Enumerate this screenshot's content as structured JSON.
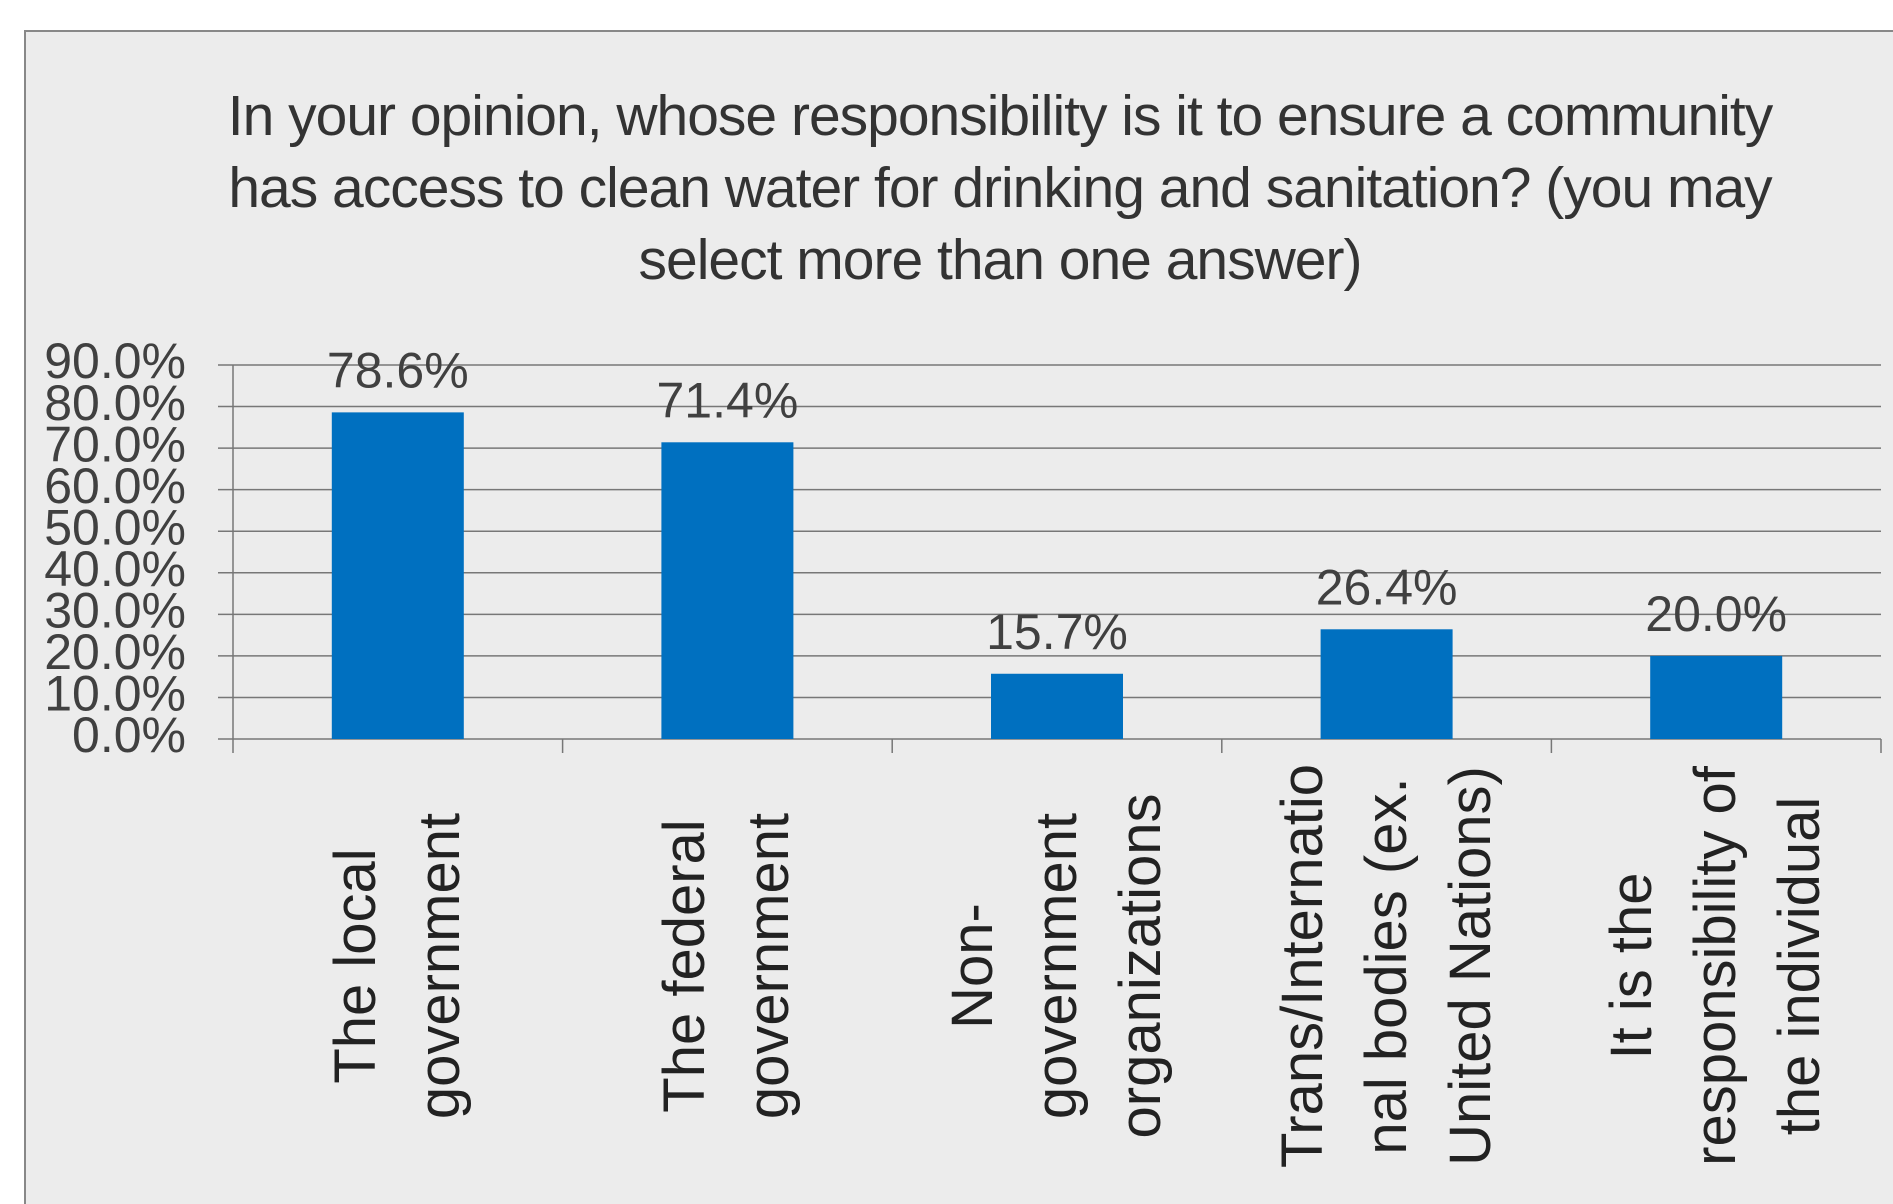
{
  "chart_data": {
    "type": "bar",
    "title": "In your opinion, whose responsibility is it to ensure a community has access to clean water for drinking and sanitation? (you may select more than one answer)",
    "categories": [
      "The local government",
      "The federal government",
      "Non-government organizations",
      "Trans/International bodies (ex. United Nations)",
      "It is the responsibility of the individual"
    ],
    "values": [
      78.6,
      71.4,
      15.7,
      26.4,
      20.0
    ],
    "value_labels": [
      "78.6%",
      "71.4%",
      "15.7%",
      "26.4%",
      "20.0%"
    ],
    "color": "#0070c0",
    "ylim": [
      0,
      90
    ],
    "yticks": [
      {
        "value": 0,
        "label": "0.0%"
      },
      {
        "value": 10,
        "label": "10.0%"
      },
      {
        "value": 20,
        "label": "20.0%"
      },
      {
        "value": 30,
        "label": "30.0%"
      },
      {
        "value": 40,
        "label": "40.0%"
      },
      {
        "value": 50,
        "label": "50.0%"
      },
      {
        "value": 60,
        "label": "60.0%"
      },
      {
        "value": 70,
        "label": "70.0%"
      },
      {
        "value": 80,
        "label": "80.0%"
      },
      {
        "value": 90,
        "label": "90.0%"
      }
    ],
    "grid": true
  }
}
